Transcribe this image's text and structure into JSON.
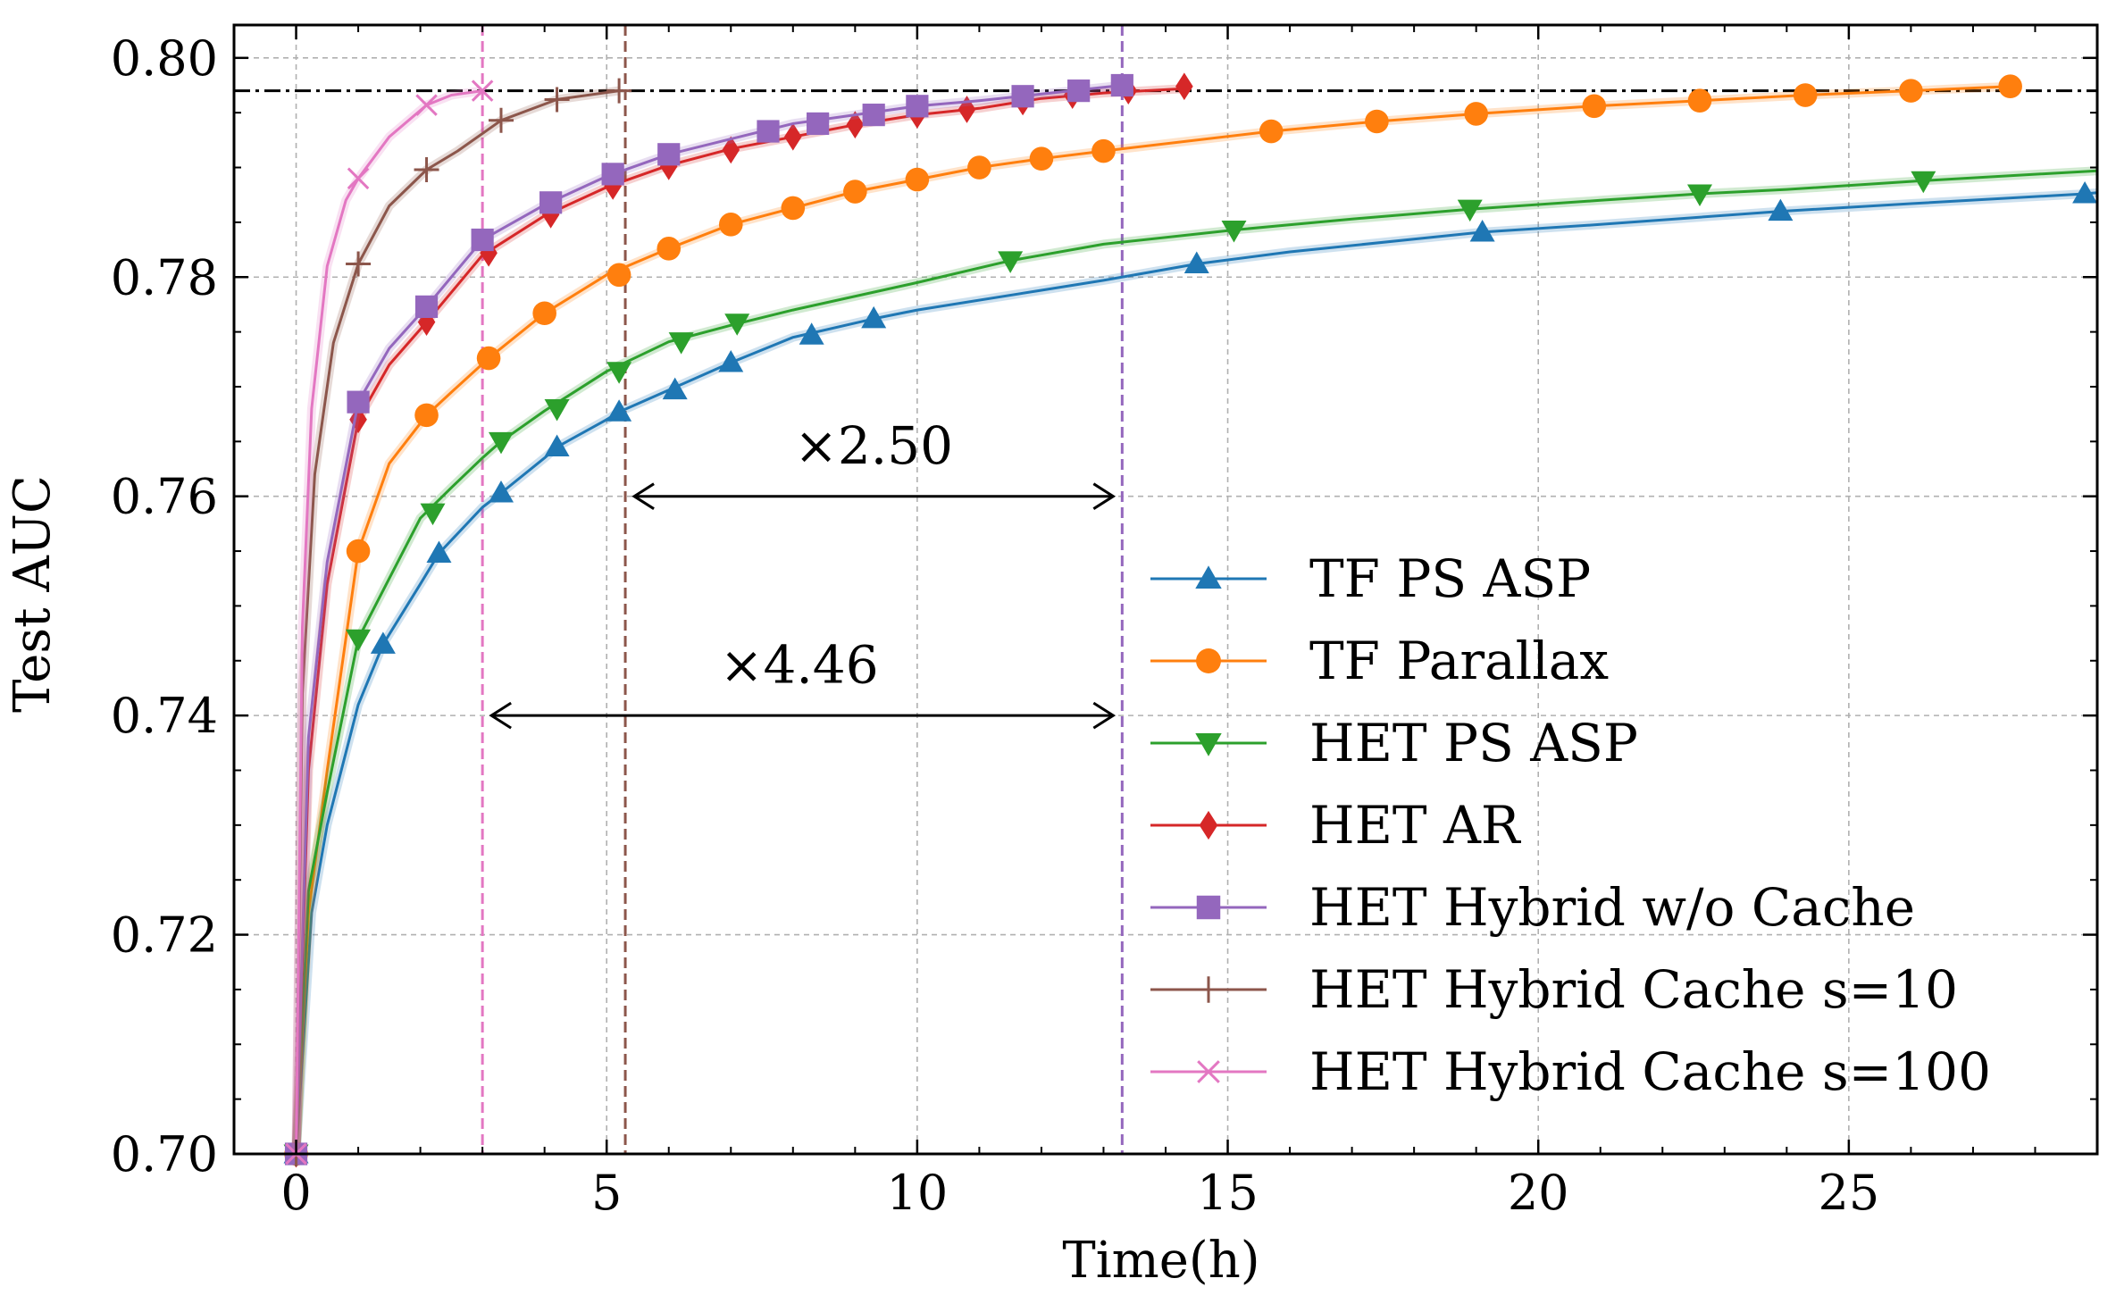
{
  "chart_data": {
    "type": "line",
    "title": "",
    "xlabel": "Time(h)",
    "ylabel": "Test AUC",
    "xlim": [
      -1,
      29
    ],
    "ylim": [
      0.7,
      0.803
    ],
    "xticks": [
      0,
      5,
      10,
      15,
      20,
      25
    ],
    "xtick_labels": [
      "0",
      "5",
      "10",
      "15",
      "20",
      "25"
    ],
    "yticks": [
      0.7,
      0.72,
      0.74,
      0.76,
      0.78,
      0.8
    ],
    "ytick_labels": [
      "0.70",
      "0.72",
      "0.74",
      "0.76",
      "0.78",
      "0.80"
    ],
    "grid": true,
    "legend_position": "lower-right",
    "target_auc": 0.797,
    "series": [
      {
        "name": "TF PS ASP",
        "color": "#1f77b4",
        "marker": "triangle-up",
        "x": [
          0,
          0.25,
          0.5,
          1.0,
          1.4,
          2.0,
          2.3,
          3.0,
          3.3,
          4.0,
          4.2,
          5.0,
          5.2,
          6.0,
          7.0,
          8.0,
          9.3,
          10.0,
          12.0,
          13.0,
          14.5,
          16.0,
          19.1,
          21.0,
          23.9,
          26.0,
          28.8,
          29.0
        ],
        "y": [
          0.7,
          0.722,
          0.73,
          0.741,
          0.7465,
          0.752,
          0.7548,
          0.759,
          0.7603,
          0.7635,
          0.7645,
          0.767,
          0.7677,
          0.7697,
          0.7722,
          0.7745,
          0.7762,
          0.777,
          0.7788,
          0.7797,
          0.7812,
          0.7823,
          0.7841,
          0.7848,
          0.786,
          0.7867,
          0.7876,
          0.7877
        ],
        "markers_x": [
          0,
          1.4,
          2.3,
          3.3,
          4.2,
          5.2,
          6.1,
          7.0,
          8.3,
          9.3,
          14.5,
          19.1,
          23.9,
          28.8
        ],
        "markers_y": [
          0.7,
          0.7465,
          0.7548,
          0.7603,
          0.7645,
          0.7677,
          0.7697,
          0.7722,
          0.7747,
          0.7762,
          0.7812,
          0.7841,
          0.786,
          0.7876
        ]
      },
      {
        "name": "TF Parallax",
        "color": "#ff7f0e",
        "marker": "circle",
        "x": [
          0,
          0.2,
          0.5,
          1.0,
          1.5,
          2.1,
          2.5,
          3.1,
          4.0,
          5.0,
          6.0,
          7.0,
          8.0,
          9.0,
          10.0,
          11.0,
          12.0,
          13.0,
          15.7,
          17.4,
          19.0,
          20.9,
          22.6,
          24.3,
          26.0,
          27.6
        ],
        "y": [
          0.7,
          0.722,
          0.735,
          0.755,
          0.763,
          0.7674,
          0.7695,
          0.7726,
          0.7767,
          0.7802,
          0.7826,
          0.7848,
          0.7863,
          0.7878,
          0.7889,
          0.79,
          0.7908,
          0.7915,
          0.7933,
          0.7942,
          0.7949,
          0.7956,
          0.7961,
          0.7966,
          0.797,
          0.7974
        ],
        "markers_x": [
          0,
          1.0,
          2.1,
          3.1,
          4.0,
          5.2,
          6.0,
          7.0,
          8.0,
          9.0,
          10.0,
          11.0,
          12.0,
          13.0,
          15.7,
          17.4,
          19.0,
          20.9,
          22.6,
          24.3,
          26.0,
          27.6
        ],
        "markers_y": [
          0.7,
          0.755,
          0.7674,
          0.7726,
          0.7767,
          0.7802,
          0.7826,
          0.7848,
          0.7863,
          0.7878,
          0.7889,
          0.79,
          0.7908,
          0.7915,
          0.7933,
          0.7942,
          0.7949,
          0.7956,
          0.7961,
          0.7966,
          0.797,
          0.7974
        ]
      },
      {
        "name": "HET PS ASP",
        "color": "#2ca02c",
        "marker": "triangle-down",
        "x": [
          0,
          0.2,
          0.5,
          1.0,
          1.5,
          2.0,
          2.5,
          3.0,
          3.3,
          4.0,
          5.0,
          6.0,
          7.0,
          8.0,
          10.0,
          11.5,
          13.0,
          15.1,
          17.0,
          18.9,
          21.0,
          22.6,
          24.0,
          26.2,
          29.0
        ],
        "y": [
          0.7,
          0.724,
          0.733,
          0.747,
          0.7525,
          0.758,
          0.7608,
          0.7635,
          0.765,
          0.7678,
          0.7714,
          0.7741,
          0.7756,
          0.777,
          0.7795,
          0.7815,
          0.783,
          0.7843,
          0.7853,
          0.7862,
          0.787,
          0.7876,
          0.788,
          0.7888,
          0.7897
        ],
        "markers_x": [
          0,
          1.0,
          2.2,
          3.3,
          4.2,
          5.2,
          6.2,
          7.1,
          11.5,
          15.1,
          18.9,
          22.6,
          26.2
        ],
        "markers_y": [
          0.7,
          0.747,
          0.7585,
          0.765,
          0.768,
          0.7714,
          0.7741,
          0.7758,
          0.7815,
          0.7843,
          0.7862,
          0.7876,
          0.7888
        ]
      },
      {
        "name": "HET AR",
        "color": "#d62728",
        "marker": "diamond",
        "x": [
          0,
          0.2,
          0.5,
          1.0,
          1.5,
          2.1,
          3.0,
          4.0,
          5.0,
          6.0,
          7.0,
          8.0,
          9.0,
          10.0,
          11.0,
          12.0,
          13.0,
          14.3
        ],
        "y": [
          0.7,
          0.735,
          0.752,
          0.767,
          0.772,
          0.7759,
          0.782,
          0.7856,
          0.7882,
          0.7902,
          0.7917,
          0.7928,
          0.7939,
          0.7948,
          0.7954,
          0.7963,
          0.7968,
          0.7972
        ],
        "markers_x": [
          0,
          1.0,
          2.1,
          3.1,
          4.1,
          5.1,
          6.0,
          7.0,
          8.0,
          9.0,
          10.0,
          10.8,
          11.7,
          12.5,
          13.4,
          14.3
        ],
        "markers_y": [
          0.7,
          0.767,
          0.7759,
          0.7822,
          0.7857,
          0.7883,
          0.7901,
          0.7916,
          0.7928,
          0.7939,
          0.7948,
          0.7953,
          0.796,
          0.7966,
          0.797,
          0.7974
        ]
      },
      {
        "name": "HET Hybrid w/o Cache",
        "color": "#9467bd",
        "marker": "square",
        "x": [
          0,
          0.2,
          0.5,
          1.0,
          1.5,
          2.1,
          3.0,
          4.0,
          5.0,
          6.0,
          7.0,
          8.0,
          9.0,
          10.0,
          11.0,
          12.0,
          13.3
        ],
        "y": [
          0.7,
          0.738,
          0.754,
          0.7686,
          0.7735,
          0.7773,
          0.7834,
          0.7866,
          0.7892,
          0.7912,
          0.7926,
          0.794,
          0.7948,
          0.7956,
          0.7961,
          0.7967,
          0.7975
        ],
        "markers_x": [
          0,
          1.0,
          2.1,
          3.0,
          4.1,
          5.1,
          6.0,
          7.6,
          8.4,
          9.3,
          10.0,
          11.7,
          12.6,
          13.3
        ],
        "markers_y": [
          0.7,
          0.7686,
          0.7773,
          0.7834,
          0.7868,
          0.7894,
          0.7912,
          0.7933,
          0.794,
          0.7948,
          0.7956,
          0.7965,
          0.797,
          0.7975
        ]
      },
      {
        "name": "HET Hybrid Cache s=10",
        "color": "#8c564b",
        "marker": "plus",
        "x": [
          0,
          0.1,
          0.3,
          0.6,
          1.0,
          1.5,
          2.1,
          2.6,
          3.3,
          4.2,
          5.2
        ],
        "y": [
          0.7,
          0.742,
          0.762,
          0.774,
          0.7812,
          0.7865,
          0.7898,
          0.7915,
          0.7943,
          0.7962,
          0.797
        ],
        "markers_x": [
          0,
          1.0,
          2.1,
          3.3,
          4.2,
          5.2
        ],
        "markers_y": [
          0.7,
          0.7812,
          0.7898,
          0.7943,
          0.7962,
          0.797
        ]
      },
      {
        "name": "HET Hybrid Cache s=100",
        "color": "#e377c2",
        "marker": "x",
        "x": [
          0,
          0.1,
          0.25,
          0.5,
          0.8,
          1.0,
          1.5,
          2.1,
          2.5,
          3.0
        ],
        "y": [
          0.7,
          0.748,
          0.768,
          0.781,
          0.787,
          0.789,
          0.7928,
          0.7957,
          0.7966,
          0.797
        ],
        "markers_x": [
          0,
          1.0,
          2.1,
          3.0
        ],
        "markers_y": [
          0.7,
          0.789,
          0.7957,
          0.797
        ]
      }
    ],
    "vlines": [
      {
        "x": 3.0,
        "color": "#e377c2"
      },
      {
        "x": 5.3,
        "color": "#8c564b"
      },
      {
        "x": 13.3,
        "color": "#9467bd"
      }
    ],
    "annotations": [
      {
        "text": "×2.50",
        "from_x": 5.3,
        "to_x": 13.3,
        "y": 0.76,
        "text_x": 9.3,
        "text_y": 0.763
      },
      {
        "text": "×4.46",
        "from_x": 3.0,
        "to_x": 13.3,
        "y": 0.74,
        "text_x": 8.1,
        "text_y": 0.743
      }
    ]
  }
}
